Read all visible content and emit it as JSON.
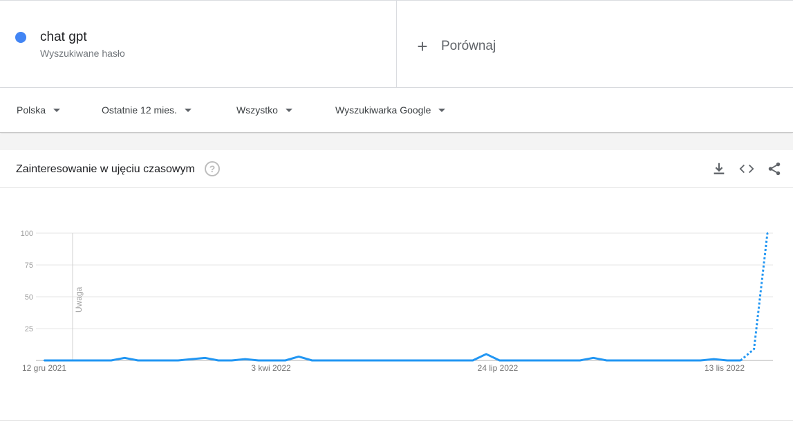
{
  "term": {
    "name": "chat gpt",
    "subtitle": "Wyszukiwane hasło",
    "color": "#4285f4"
  },
  "compare": {
    "label": "Porównaj",
    "icon": "plus-icon"
  },
  "filters": [
    {
      "label": "Polska"
    },
    {
      "label": "Ostatnie 12 mies."
    },
    {
      "label": "Wszystko"
    },
    {
      "label": "Wyszukiwarka Google"
    }
  ],
  "card": {
    "title": "Zainteresowanie w ujęciu czasowym",
    "help_icon": "question-icon",
    "tools": [
      "download-icon",
      "embed-code-icon",
      "share-icon"
    ]
  },
  "chart_data": {
    "type": "line",
    "ylim": [
      0,
      100
    ],
    "yticks": [
      "100",
      "75",
      "50",
      "25"
    ],
    "xtick_labels": [
      "12 gru 2021",
      "3 kwi 2022",
      "24 lip 2022",
      "13 lis 2022"
    ],
    "annotation": "Uwaga",
    "series": [
      {
        "color": "#2196f3",
        "values": [
          0,
          0,
          0,
          0,
          0,
          0,
          2,
          0,
          0,
          0,
          0,
          1,
          2,
          0,
          0,
          1,
          0,
          0,
          0,
          3,
          0,
          0,
          0,
          0,
          0,
          0,
          0,
          0,
          0,
          0,
          0,
          0,
          0,
          5,
          0,
          0,
          0,
          0,
          0,
          0,
          0,
          2,
          0,
          0,
          0,
          0,
          0,
          0,
          0,
          0,
          1,
          0,
          0,
          9,
          100
        ],
        "partial_from_index": 53
      }
    ]
  }
}
